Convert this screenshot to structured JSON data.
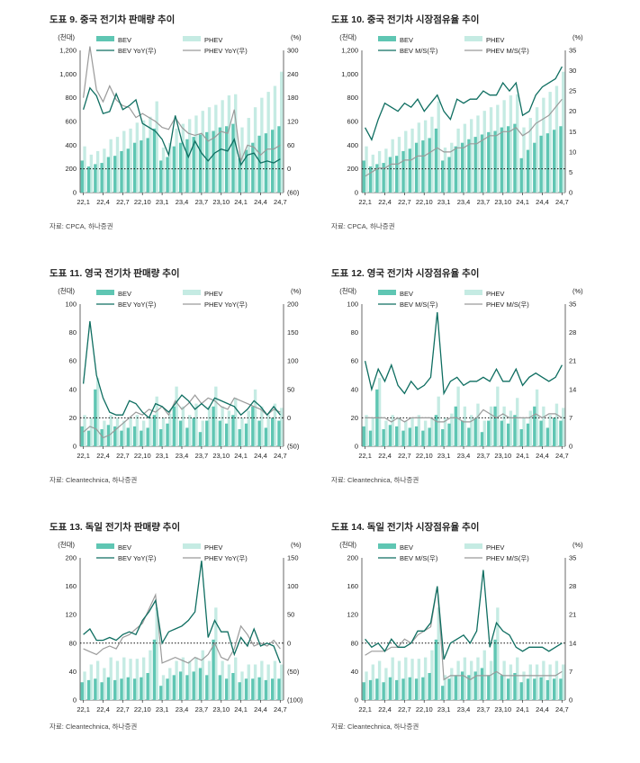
{
  "colors": {
    "bev": "#5fc6b3",
    "phev": "#c5ebe3",
    "bev_line": "#0f6e61",
    "phev_line": "#9a9a9a"
  },
  "chart_data": [
    {
      "type": "bar",
      "title": "도표 9. 중국 전기차 판매량 추이",
      "source": "자료: CPCA, 하나증권",
      "left_unit": "(천대)",
      "right_unit": "(%)",
      "ylim": [
        0,
        1200
      ],
      "yticks": [
        "0",
        "200",
        "400",
        "600",
        "800",
        "1,000",
        "1,200"
      ],
      "y2lim": [
        -60,
        300
      ],
      "y2ticks": [
        "(60)",
        "0",
        "60",
        "120",
        "180",
        "240",
        "300"
      ],
      "ref_left": 200,
      "xlabels": [
        "22,1",
        "22,4",
        "22,7",
        "22,10",
        "23,1",
        "23,4",
        "23,7",
        "23,10",
        "24,1",
        "24,4",
        "24,7"
      ],
      "legend": [
        "BEV",
        "PHEV",
        "BEV YoY(우)",
        "PHEV YoY(우)"
      ],
      "series": [
        {
          "name": "BEV",
          "values": [
            270,
            220,
            240,
            250,
            300,
            310,
            350,
            370,
            420,
            440,
            460,
            540,
            270,
            300,
            390,
            420,
            450,
            470,
            490,
            510,
            520,
            550,
            560,
            580,
            290,
            360,
            420,
            480,
            500,
            530,
            560
          ]
        },
        {
          "name": "PHEV",
          "values": [
            390,
            320,
            350,
            370,
            450,
            470,
            520,
            540,
            590,
            610,
            640,
            770,
            380,
            420,
            540,
            580,
            620,
            650,
            690,
            720,
            740,
            780,
            820,
            830,
            550,
            630,
            720,
            800,
            850,
            900,
            1020
          ]
        },
        {
          "name": "BEV YoY(우)",
          "values": [
            150,
            205,
            185,
            140,
            145,
            190,
            150,
            160,
            175,
            115,
            105,
            95,
            75,
            35,
            135,
            70,
            30,
            70,
            40,
            20,
            40,
            50,
            45,
            75,
            10,
            35,
            40,
            15,
            20,
            15,
            25
          ]
        },
        {
          "name": "PHEV YoY(우)",
          "values": [
            180,
            310,
            200,
            170,
            210,
            175,
            160,
            155,
            130,
            140,
            130,
            120,
            105,
            100,
            130,
            105,
            90,
            85,
            90,
            70,
            80,
            95,
            90,
            150,
            20,
            60,
            55,
            35,
            50,
            50,
            60
          ]
        }
      ]
    },
    {
      "type": "bar",
      "title": "도표 10. 중국 전기차 시장점유율 추이",
      "source": "자료: CPCA, 하나증권",
      "left_unit": "(천대)",
      "right_unit": "(%)",
      "ylim": [
        0,
        1200
      ],
      "yticks": [
        "0",
        "200",
        "400",
        "600",
        "800",
        "1,000",
        "1,200"
      ],
      "y2lim": [
        0,
        35
      ],
      "y2ticks": [
        "0",
        "5",
        "10",
        "15",
        "20",
        "25",
        "30",
        "35"
      ],
      "ref_left": 200,
      "xlabels": [
        "22,1",
        "22,4",
        "22,7",
        "22,10",
        "23,1",
        "23,4",
        "23,7",
        "23,10",
        "24,1",
        "24,4",
        "24,7"
      ],
      "legend": [
        "BEV",
        "PHEV",
        "BEV M/S(우)",
        "PHEV M/S(우)"
      ],
      "series": [
        {
          "name": "BEV",
          "values": [
            270,
            220,
            240,
            250,
            300,
            310,
            350,
            370,
            420,
            440,
            460,
            540,
            270,
            300,
            390,
            420,
            450,
            470,
            490,
            510,
            520,
            550,
            560,
            580,
            290,
            360,
            420,
            480,
            500,
            530,
            560
          ]
        },
        {
          "name": "PHEV",
          "values": [
            390,
            320,
            350,
            370,
            450,
            470,
            520,
            540,
            590,
            610,
            640,
            770,
            380,
            420,
            540,
            580,
            620,
            650,
            690,
            720,
            740,
            780,
            820,
            830,
            550,
            630,
            720,
            800,
            850,
            900,
            1020
          ]
        },
        {
          "name": "BEV M/S(우)",
          "values": [
            16,
            13,
            18,
            22,
            21,
            20,
            22,
            21,
            23,
            20,
            22,
            24,
            20,
            18,
            23,
            22,
            23,
            23,
            25,
            24,
            24,
            27,
            25,
            27,
            19,
            20,
            24,
            26,
            27,
            28,
            31
          ]
        },
        {
          "name": "PHEV M/S(우)",
          "values": [
            4,
            5,
            6,
            6,
            7,
            7,
            8,
            8,
            9,
            9,
            10,
            11,
            10,
            10,
            11,
            11,
            12,
            12,
            13,
            14,
            14,
            15,
            15,
            16,
            14,
            15,
            17,
            18,
            19,
            21,
            23
          ]
        }
      ]
    },
    {
      "type": "bar",
      "title": "도표 11. 영국 전기차 판매량 추이",
      "source": "자료: Cleantechnica, 하나증권",
      "left_unit": "(천대)",
      "right_unit": "(%)",
      "ylim": [
        0,
        100
      ],
      "yticks": [
        "0",
        "20",
        "40",
        "60",
        "80",
        "100"
      ],
      "y2lim": [
        -50,
        200
      ],
      "y2ticks": [
        "(50)",
        "0",
        "50",
        "100",
        "150",
        "200"
      ],
      "ref_left": 20,
      "xlabels": [
        "22,1",
        "22,4",
        "22,7",
        "22,10",
        "23,1",
        "23,4",
        "23,7",
        "23,10",
        "24,1",
        "24,4",
        "24,7"
      ],
      "legend": [
        "BEV",
        "PHEV",
        "BEV YoY(우)",
        "PHEV YoY(우)"
      ],
      "series": [
        {
          "name": "BEV",
          "values": [
            14,
            11,
            40,
            12,
            15,
            14,
            11,
            13,
            14,
            11,
            13,
            22,
            12,
            16,
            28,
            18,
            13,
            20,
            10,
            18,
            28,
            18,
            16,
            22,
            12,
            16,
            28,
            18,
            13,
            20,
            18
          ]
        },
        {
          "name": "PHEV",
          "values": [
            22,
            20,
            48,
            18,
            22,
            20,
            18,
            20,
            22,
            18,
            20,
            35,
            20,
            23,
            42,
            28,
            22,
            30,
            18,
            28,
            42,
            28,
            25,
            34,
            20,
            25,
            40,
            28,
            22,
            30,
            27
          ]
        },
        {
          "name": "BEV YoY(우)",
          "values": [
            60,
            170,
            75,
            35,
            10,
            5,
            5,
            30,
            25,
            10,
            0,
            25,
            20,
            10,
            25,
            40,
            30,
            15,
            25,
            15,
            35,
            30,
            25,
            20,
            5,
            15,
            30,
            20,
            5,
            20,
            5
          ]
        },
        {
          "name": "PHEV YoY(우)",
          "values": [
            -25,
            -15,
            -20,
            -35,
            -30,
            -20,
            -10,
            0,
            10,
            5,
            15,
            10,
            20,
            5,
            30,
            15,
            25,
            40,
            25,
            35,
            30,
            20,
            15,
            35,
            30,
            25,
            20,
            15,
            5,
            15,
            10
          ]
        }
      ]
    },
    {
      "type": "bar",
      "title": "도표 12. 영국 전기차 시장점유율 추이",
      "source": "자료: Cleantechnica, 하나증권",
      "left_unit": "(천대)",
      "right_unit": "(%)",
      "ylim": [
        0,
        100
      ],
      "yticks": [
        "0",
        "20",
        "40",
        "60",
        "80",
        "100"
      ],
      "y2lim": [
        0,
        35
      ],
      "y2ticks": [
        "0",
        "7",
        "14",
        "21",
        "28",
        "35"
      ],
      "ref_left": 20,
      "xlabels": [
        "22,1",
        "22,4",
        "22,7",
        "22,10",
        "23,1",
        "23,4",
        "23,7",
        "23,10",
        "24,1",
        "24,4",
        "24,7"
      ],
      "legend": [
        "BEV",
        "PHEV",
        "BEV M/S(우)",
        "PHEV M/S(우)"
      ],
      "series": [
        {
          "name": "BEV",
          "values": [
            14,
            11,
            40,
            12,
            15,
            14,
            11,
            13,
            14,
            11,
            13,
            22,
            12,
            16,
            28,
            18,
            13,
            20,
            10,
            18,
            28,
            18,
            16,
            22,
            12,
            16,
            28,
            18,
            13,
            20,
            18
          ]
        },
        {
          "name": "PHEV",
          "values": [
            22,
            20,
            48,
            18,
            22,
            20,
            18,
            20,
            22,
            18,
            20,
            35,
            20,
            23,
            42,
            28,
            22,
            30,
            18,
            28,
            42,
            28,
            25,
            34,
            20,
            25,
            40,
            28,
            22,
            30,
            27
          ]
        },
        {
          "name": "BEV M/S(우)",
          "values": [
            21,
            14,
            19,
            16,
            20,
            15,
            13,
            16,
            14,
            15,
            17,
            33,
            13,
            16,
            17,
            15,
            16,
            16,
            17,
            16,
            19,
            16,
            16,
            19,
            15,
            17,
            18,
            17,
            16,
            17,
            20
          ]
        },
        {
          "name": "PHEV M/S(우)",
          "values": [
            7,
            7,
            7,
            7,
            6,
            7,
            6,
            7,
            7,
            7,
            7,
            6,
            6,
            7,
            7,
            6,
            6,
            7,
            9,
            8,
            7,
            8,
            7,
            7,
            7,
            7,
            8,
            7,
            8,
            8,
            7
          ]
        }
      ]
    },
    {
      "type": "bar",
      "title": "도표 13. 독일 전기차 판매량 추이",
      "source": "자료: Cleantechnica, 하나증권",
      "left_unit": "(천대)",
      "right_unit": "(%)",
      "ylim": [
        0,
        200
      ],
      "yticks": [
        "0",
        "40",
        "80",
        "120",
        "160",
        "200"
      ],
      "y2lim": [
        -100,
        150
      ],
      "y2ticks": [
        "(100)",
        "(50)",
        "0",
        "50",
        "100",
        "150"
      ],
      "ref_left": 80,
      "xlabels": [
        "22,1",
        "22,4",
        "22,7",
        "22,10",
        "23,1",
        "23,4",
        "23,7",
        "23,10",
        "24,1",
        "24,4",
        "24,7"
      ],
      "legend": [
        "BEV",
        "PHEV",
        "BEV YoY(우)",
        "PHEV YoY(우)"
      ],
      "series": [
        {
          "name": "BEV",
          "values": [
            25,
            28,
            30,
            25,
            32,
            28,
            30,
            32,
            30,
            32,
            38,
            85,
            20,
            30,
            35,
            40,
            35,
            40,
            45,
            35,
            85,
            35,
            30,
            38,
            25,
            30,
            30,
            32,
            28,
            30,
            30
          ]
        },
        {
          "name": "PHEV",
          "values": [
            40,
            50,
            55,
            45,
            60,
            55,
            60,
            58,
            58,
            60,
            70,
            130,
            35,
            45,
            55,
            60,
            55,
            60,
            70,
            55,
            130,
            55,
            50,
            60,
            40,
            50,
            50,
            55,
            50,
            55,
            50
          ]
        },
        {
          "name": "BEV YoY(우)",
          "values": [
            15,
            25,
            5,
            5,
            10,
            5,
            15,
            20,
            15,
            40,
            55,
            75,
            0,
            20,
            25,
            30,
            40,
            55,
            145,
            10,
            40,
            20,
            20,
            -20,
            10,
            -5,
            25,
            -5,
            0,
            -5,
            -35
          ]
        },
        {
          "name": "PHEV YoY(우)",
          "values": [
            -10,
            -15,
            -20,
            -10,
            -5,
            -10,
            10,
            15,
            25,
            35,
            60,
            85,
            -35,
            -30,
            -25,
            -30,
            -35,
            -25,
            -30,
            -20,
            0,
            -25,
            -30,
            -10,
            30,
            15,
            -5,
            0,
            -5,
            5,
            -10
          ]
        }
      ]
    },
    {
      "type": "bar",
      "title": "도표 14. 독일 전기차 시장점유율 추이",
      "source": "자료: Cleantechnica, 하나증권",
      "left_unit": "(천대)",
      "right_unit": "(%)",
      "ylim": [
        0,
        200
      ],
      "yticks": [
        "0",
        "40",
        "80",
        "120",
        "160",
        "200"
      ],
      "y2lim": [
        0,
        35
      ],
      "y2ticks": [
        "0",
        "7",
        "14",
        "21",
        "28",
        "35"
      ],
      "ref_left": 80,
      "xlabels": [
        "22,1",
        "22,4",
        "22,7",
        "22,10",
        "23,1",
        "23,4",
        "23,7",
        "23,10",
        "24,1",
        "24,4",
        "24,7"
      ],
      "legend": [
        "BEV",
        "PHEV",
        "BEV M/S(우)",
        "PHEV M/S(우)"
      ],
      "series": [
        {
          "name": "BEV",
          "values": [
            25,
            28,
            30,
            25,
            32,
            28,
            30,
            32,
            30,
            32,
            38,
            85,
            20,
            30,
            35,
            40,
            35,
            40,
            45,
            35,
            85,
            35,
            30,
            38,
            25,
            30,
            30,
            32,
            28,
            30,
            30
          ]
        },
        {
          "name": "PHEV",
          "values": [
            40,
            50,
            55,
            45,
            60,
            55,
            60,
            58,
            58,
            60,
            70,
            130,
            35,
            45,
            55,
            60,
            55,
            60,
            70,
            55,
            130,
            55,
            50,
            60,
            40,
            50,
            50,
            55,
            50,
            55,
            50
          ]
        },
        {
          "name": "BEV M/S(우)",
          "values": [
            15,
            13,
            14,
            12,
            15,
            13,
            13,
            14,
            17,
            17,
            19,
            28,
            10,
            14,
            15,
            16,
            14,
            17,
            32,
            13,
            19,
            17,
            16,
            13,
            12,
            13,
            13,
            13,
            12,
            13,
            14
          ]
        },
        {
          "name": "PHEV M/S(우)",
          "values": [
            11,
            12,
            12,
            12,
            13,
            13,
            15,
            14,
            16,
            17,
            18,
            28,
            5,
            6,
            6,
            6,
            5,
            6,
            6,
            6,
            7,
            6,
            6,
            6,
            6,
            6,
            6,
            6,
            6,
            6,
            7
          ]
        }
      ]
    }
  ]
}
